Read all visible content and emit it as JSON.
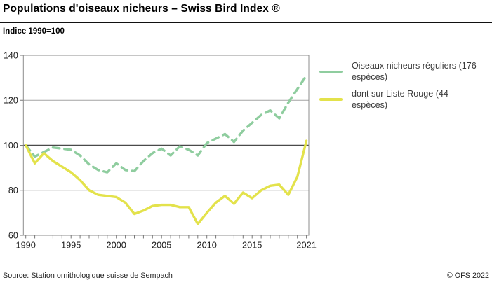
{
  "header": {
    "title": "Populations d'oiseaux nicheurs – Swiss Bird Index ®",
    "subtitle": "Indice 1990=100"
  },
  "footer": {
    "source": "Source: Station ornithologique suisse de Sempach",
    "copyright": "© OFS 2022"
  },
  "chart_data": {
    "type": "line",
    "title": "Populations d'oiseaux nicheurs – Swiss Bird Index ®",
    "xlabel": "",
    "ylabel": "Indice 1990=100",
    "ylim": [
      60,
      140
    ],
    "grid": true,
    "legend_position": "right",
    "reference_line": 100,
    "x_ticks": [
      1990,
      1995,
      2000,
      2005,
      2010,
      2015,
      2021
    ],
    "y_ticks": [
      60,
      80,
      100,
      120,
      140
    ],
    "x": [
      1990,
      1991,
      1992,
      1993,
      1994,
      1995,
      1996,
      1997,
      1998,
      1999,
      2000,
      2001,
      2002,
      2003,
      2004,
      2005,
      2006,
      2007,
      2008,
      2009,
      2010,
      2011,
      2012,
      2013,
      2014,
      2015,
      2016,
      2017,
      2018,
      2019,
      2020,
      2021
    ],
    "series": [
      {
        "id": "oiseaux-nicheurs-reguliers",
        "name": "Oiseaux nicheurs réguliers (176 espèces)",
        "color": "#8fcd9f",
        "dashed": true,
        "values": [
          100,
          95,
          97,
          99,
          98.5,
          98,
          95.5,
          91.5,
          89,
          88,
          92,
          89,
          88.5,
          93,
          96.5,
          98.5,
          95.5,
          99.5,
          98,
          95.5,
          101,
          103,
          105,
          101.5,
          106.5,
          110,
          113.5,
          115.5,
          112,
          119,
          125,
          131
        ]
      },
      {
        "id": "liste-rouge",
        "name": "dont sur Liste Rouge (44 espèces)",
        "color": "#e3e24b",
        "dashed": false,
        "values": [
          100,
          92,
          96.5,
          93,
          90.5,
          88,
          84.5,
          80,
          78,
          77.5,
          77,
          74.5,
          69.5,
          71,
          73,
          73.5,
          73.5,
          72.5,
          72.5,
          65,
          70,
          74.5,
          77.5,
          74,
          79,
          76.5,
          80,
          82,
          82.5,
          78,
          86,
          102
        ]
      }
    ]
  }
}
